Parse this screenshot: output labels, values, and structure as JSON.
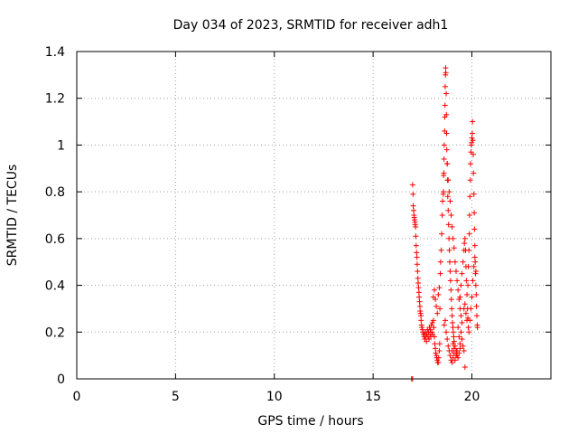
{
  "chart_data": {
    "type": "scatter",
    "title": "Day 034 of 2023, SRMTID for receiver adh1",
    "xlabel": "GPS time / hours",
    "ylabel": "SRMTID / TECUs",
    "xlim": [
      0,
      24
    ],
    "ylim": [
      0,
      1.4
    ],
    "xticks": [
      0,
      5,
      10,
      15,
      20
    ],
    "xtick_labels": [
      "0",
      "5",
      "10",
      "15",
      "20"
    ],
    "yticks": [
      0,
      0.2,
      0.4,
      0.6,
      0.8,
      1,
      1.2,
      1.4
    ],
    "ytick_labels": [
      "0",
      "0.2",
      "0.4",
      "0.6",
      "0.8",
      "1",
      "1.2",
      "1.4"
    ],
    "grid": true,
    "marker": "+",
    "series": [
      {
        "name": "SRMTID",
        "color": "#ff0000",
        "points": [
          [
            16.95,
            0.0
          ],
          [
            17.0,
            0.0
          ],
          [
            17.0,
            0.83
          ],
          [
            17.02,
            0.79
          ],
          [
            17.03,
            0.74
          ],
          [
            17.05,
            0.72
          ],
          [
            17.07,
            0.7
          ],
          [
            17.08,
            0.69
          ],
          [
            17.1,
            0.68
          ],
          [
            17.12,
            0.67
          ],
          [
            17.13,
            0.66
          ],
          [
            17.15,
            0.65
          ],
          [
            17.16,
            0.61
          ],
          [
            17.18,
            0.57
          ],
          [
            17.2,
            0.54
          ],
          [
            17.22,
            0.52
          ],
          [
            17.23,
            0.49
          ],
          [
            17.25,
            0.46
          ],
          [
            17.27,
            0.43
          ],
          [
            17.28,
            0.41
          ],
          [
            17.3,
            0.39
          ],
          [
            17.32,
            0.37
          ],
          [
            17.33,
            0.35
          ],
          [
            17.35,
            0.33
          ],
          [
            17.37,
            0.31
          ],
          [
            17.38,
            0.29
          ],
          [
            17.4,
            0.28
          ],
          [
            17.42,
            0.27
          ],
          [
            17.43,
            0.25
          ],
          [
            17.45,
            0.23
          ],
          [
            17.47,
            0.22
          ],
          [
            17.5,
            0.21
          ],
          [
            17.52,
            0.2
          ],
          [
            17.55,
            0.19
          ],
          [
            17.58,
            0.18
          ],
          [
            17.6,
            0.19
          ],
          [
            17.62,
            0.17
          ],
          [
            17.65,
            0.2
          ],
          [
            17.68,
            0.18
          ],
          [
            17.7,
            0.16
          ],
          [
            17.72,
            0.19
          ],
          [
            17.75,
            0.21
          ],
          [
            17.78,
            0.18
          ],
          [
            17.8,
            0.2
          ],
          [
            17.83,
            0.17
          ],
          [
            17.85,
            0.22
          ],
          [
            17.88,
            0.19
          ],
          [
            17.9,
            0.21
          ],
          [
            17.92,
            0.18
          ],
          [
            17.95,
            0.23
          ],
          [
            17.97,
            0.2
          ],
          [
            18.0,
            0.24
          ],
          [
            18.02,
            0.19
          ],
          [
            18.05,
            0.25
          ],
          [
            18.07,
            0.22
          ],
          [
            18.1,
            0.18
          ],
          [
            18.12,
            0.15
          ],
          [
            18.15,
            0.13
          ],
          [
            18.17,
            0.11
          ],
          [
            18.2,
            0.1
          ],
          [
            18.22,
            0.09
          ],
          [
            18.25,
            0.08
          ],
          [
            18.27,
            0.07
          ],
          [
            18.3,
            0.07
          ],
          [
            18.32,
            0.09
          ],
          [
            18.35,
            0.12
          ],
          [
            18.37,
            0.15
          ],
          [
            18.05,
            0.35
          ],
          [
            18.1,
            0.38
          ],
          [
            18.15,
            0.34
          ],
          [
            18.2,
            0.31
          ],
          [
            18.25,
            0.28
          ],
          [
            18.3,
            0.36
          ],
          [
            18.35,
            0.39
          ],
          [
            18.38,
            0.3
          ],
          [
            18.4,
            0.45
          ],
          [
            18.42,
            0.5
          ],
          [
            18.45,
            0.55
          ],
          [
            18.47,
            0.62
          ],
          [
            18.5,
            0.7
          ],
          [
            18.52,
            0.76
          ],
          [
            18.55,
            0.79
          ],
          [
            18.56,
            0.8
          ],
          [
            18.57,
            0.87
          ],
          [
            18.58,
            0.88
          ],
          [
            18.59,
            0.94
          ],
          [
            18.6,
            1.0
          ],
          [
            18.62,
            1.06
          ],
          [
            18.63,
            1.12
          ],
          [
            18.64,
            1.17
          ],
          [
            18.65,
            1.25
          ],
          [
            18.66,
            1.3
          ],
          [
            18.67,
            1.33
          ],
          [
            18.68,
            1.31
          ],
          [
            18.7,
            1.22
          ],
          [
            18.71,
            1.13
          ],
          [
            18.72,
            1.05
          ],
          [
            18.73,
            0.98
          ],
          [
            18.75,
            0.92
          ],
          [
            18.77,
            0.85
          ],
          [
            18.78,
            0.78
          ],
          [
            18.8,
            0.72
          ],
          [
            18.82,
            0.66
          ],
          [
            18.84,
            0.6
          ],
          [
            18.86,
            0.55
          ],
          [
            18.88,
            0.5
          ],
          [
            18.9,
            0.46
          ],
          [
            18.92,
            0.42
          ],
          [
            18.94,
            0.38
          ],
          [
            18.96,
            0.34
          ],
          [
            18.98,
            0.3
          ],
          [
            19.0,
            0.27
          ],
          [
            19.02,
            0.24
          ],
          [
            19.04,
            0.22
          ],
          [
            19.06,
            0.2
          ],
          [
            19.08,
            0.18
          ],
          [
            19.1,
            0.16
          ],
          [
            18.6,
            0.23
          ],
          [
            18.65,
            0.25
          ],
          [
            18.7,
            0.2
          ],
          [
            18.75,
            0.17
          ],
          [
            18.8,
            0.14
          ],
          [
            18.85,
            0.12
          ],
          [
            18.9,
            0.1
          ],
          [
            18.95,
            0.08
          ],
          [
            19.0,
            0.07
          ],
          [
            19.05,
            0.09
          ],
          [
            19.1,
            0.11
          ],
          [
            19.15,
            0.08
          ],
          [
            19.2,
            0.1
          ],
          [
            19.25,
            0.12
          ],
          [
            19.3,
            0.09
          ],
          [
            19.35,
            0.11
          ],
          [
            19.4,
            0.13
          ],
          [
            19.0,
            0.12
          ],
          [
            19.05,
            0.15
          ],
          [
            19.1,
            0.13
          ],
          [
            19.15,
            0.14
          ],
          [
            19.2,
            0.12
          ],
          [
            19.25,
            0.1
          ],
          [
            18.75,
            0.92
          ],
          [
            18.8,
            0.85
          ],
          [
            18.85,
            0.8
          ],
          [
            18.9,
            0.76
          ],
          [
            18.95,
            0.7
          ],
          [
            19.0,
            0.65
          ],
          [
            19.05,
            0.6
          ],
          [
            19.1,
            0.56
          ],
          [
            19.15,
            0.5
          ],
          [
            19.2,
            0.46
          ],
          [
            19.25,
            0.42
          ],
          [
            19.3,
            0.38
          ],
          [
            19.35,
            0.34
          ],
          [
            19.4,
            0.3
          ],
          [
            19.45,
            0.27
          ],
          [
            19.5,
            0.24
          ],
          [
            19.4,
            0.35
          ],
          [
            19.45,
            0.4
          ],
          [
            19.5,
            0.45
          ],
          [
            19.55,
            0.5
          ],
          [
            19.6,
            0.55
          ],
          [
            19.62,
            0.58
          ],
          [
            19.65,
            0.6
          ],
          [
            19.68,
            0.55
          ],
          [
            19.7,
            0.48
          ],
          [
            19.72,
            0.42
          ],
          [
            19.75,
            0.36
          ],
          [
            19.78,
            0.3
          ],
          [
            19.8,
            0.26
          ],
          [
            19.82,
            0.22
          ],
          [
            19.6,
            0.3
          ],
          [
            19.65,
            0.32
          ],
          [
            19.7,
            0.28
          ],
          [
            19.75,
            0.25
          ],
          [
            19.3,
            0.22
          ],
          [
            19.35,
            0.18
          ],
          [
            19.4,
            0.15
          ],
          [
            19.45,
            0.2
          ],
          [
            19.5,
            0.17
          ],
          [
            19.55,
            0.14
          ],
          [
            19.6,
            0.12
          ],
          [
            19.65,
            0.05
          ],
          [
            19.8,
            0.4
          ],
          [
            19.82,
            0.48
          ],
          [
            19.85,
            0.55
          ],
          [
            19.87,
            0.62
          ],
          [
            19.88,
            0.7
          ],
          [
            19.9,
            0.78
          ],
          [
            19.92,
            0.85
          ],
          [
            19.93,
            0.92
          ],
          [
            19.95,
            0.97
          ],
          [
            19.97,
            1.0
          ],
          [
            19.98,
            1.01
          ],
          [
            20.0,
            1.03
          ],
          [
            20.02,
            1.05
          ],
          [
            20.03,
            1.1
          ],
          [
            20.05,
            1.02
          ],
          [
            20.07,
            0.96
          ],
          [
            20.08,
            0.88
          ],
          [
            20.1,
            0.79
          ],
          [
            20.12,
            0.71
          ],
          [
            20.13,
            0.64
          ],
          [
            20.15,
            0.57
          ],
          [
            20.17,
            0.5
          ],
          [
            20.18,
            0.45
          ],
          [
            20.2,
            0.4
          ],
          [
            20.22,
            0.36
          ],
          [
            20.23,
            0.31
          ],
          [
            20.25,
            0.27
          ],
          [
            20.27,
            0.23
          ],
          [
            20.28,
            0.22
          ],
          [
            19.85,
            0.2
          ],
          [
            19.9,
            0.25
          ],
          [
            19.95,
            0.3
          ],
          [
            20.0,
            0.35
          ],
          [
            20.05,
            0.42
          ],
          [
            20.1,
            0.48
          ],
          [
            20.15,
            0.52
          ],
          [
            20.2,
            0.46
          ]
        ]
      }
    ]
  }
}
